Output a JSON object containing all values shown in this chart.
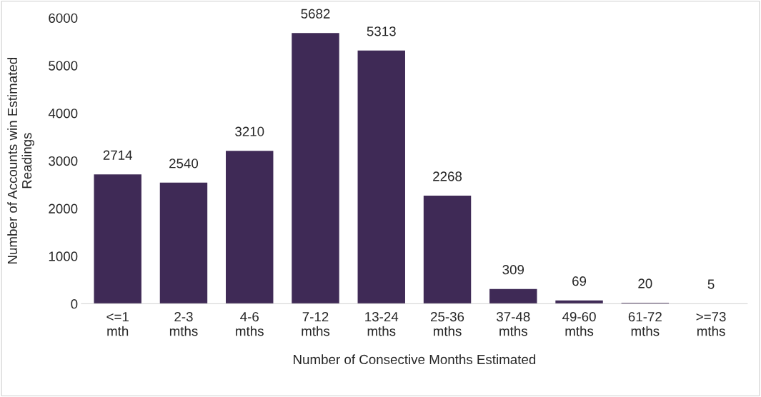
{
  "chart_data": {
    "type": "bar",
    "categories": [
      "<=1\nmth",
      "2-3\nmths",
      "4-6\nmths",
      "7-12\nmths",
      "13-24\nmths",
      "25-36\nmths",
      "37-48\nmths",
      "49-60\nmths",
      "61-72\nmths",
      ">=73\nmths"
    ],
    "values": [
      2714,
      2540,
      3210,
      5682,
      5313,
      2268,
      309,
      69,
      20,
      5
    ],
    "color": "#3f2a56",
    "xlabel": "Number of Consective Months Estimated",
    "ylabel": "Number of Accounts win Estimated\nReadings",
    "ylim": [
      0,
      6000
    ],
    "yticks": [
      0,
      1000,
      2000,
      3000,
      4000,
      5000,
      6000
    ],
    "data_labels": true,
    "grid": false,
    "legend": false
  }
}
